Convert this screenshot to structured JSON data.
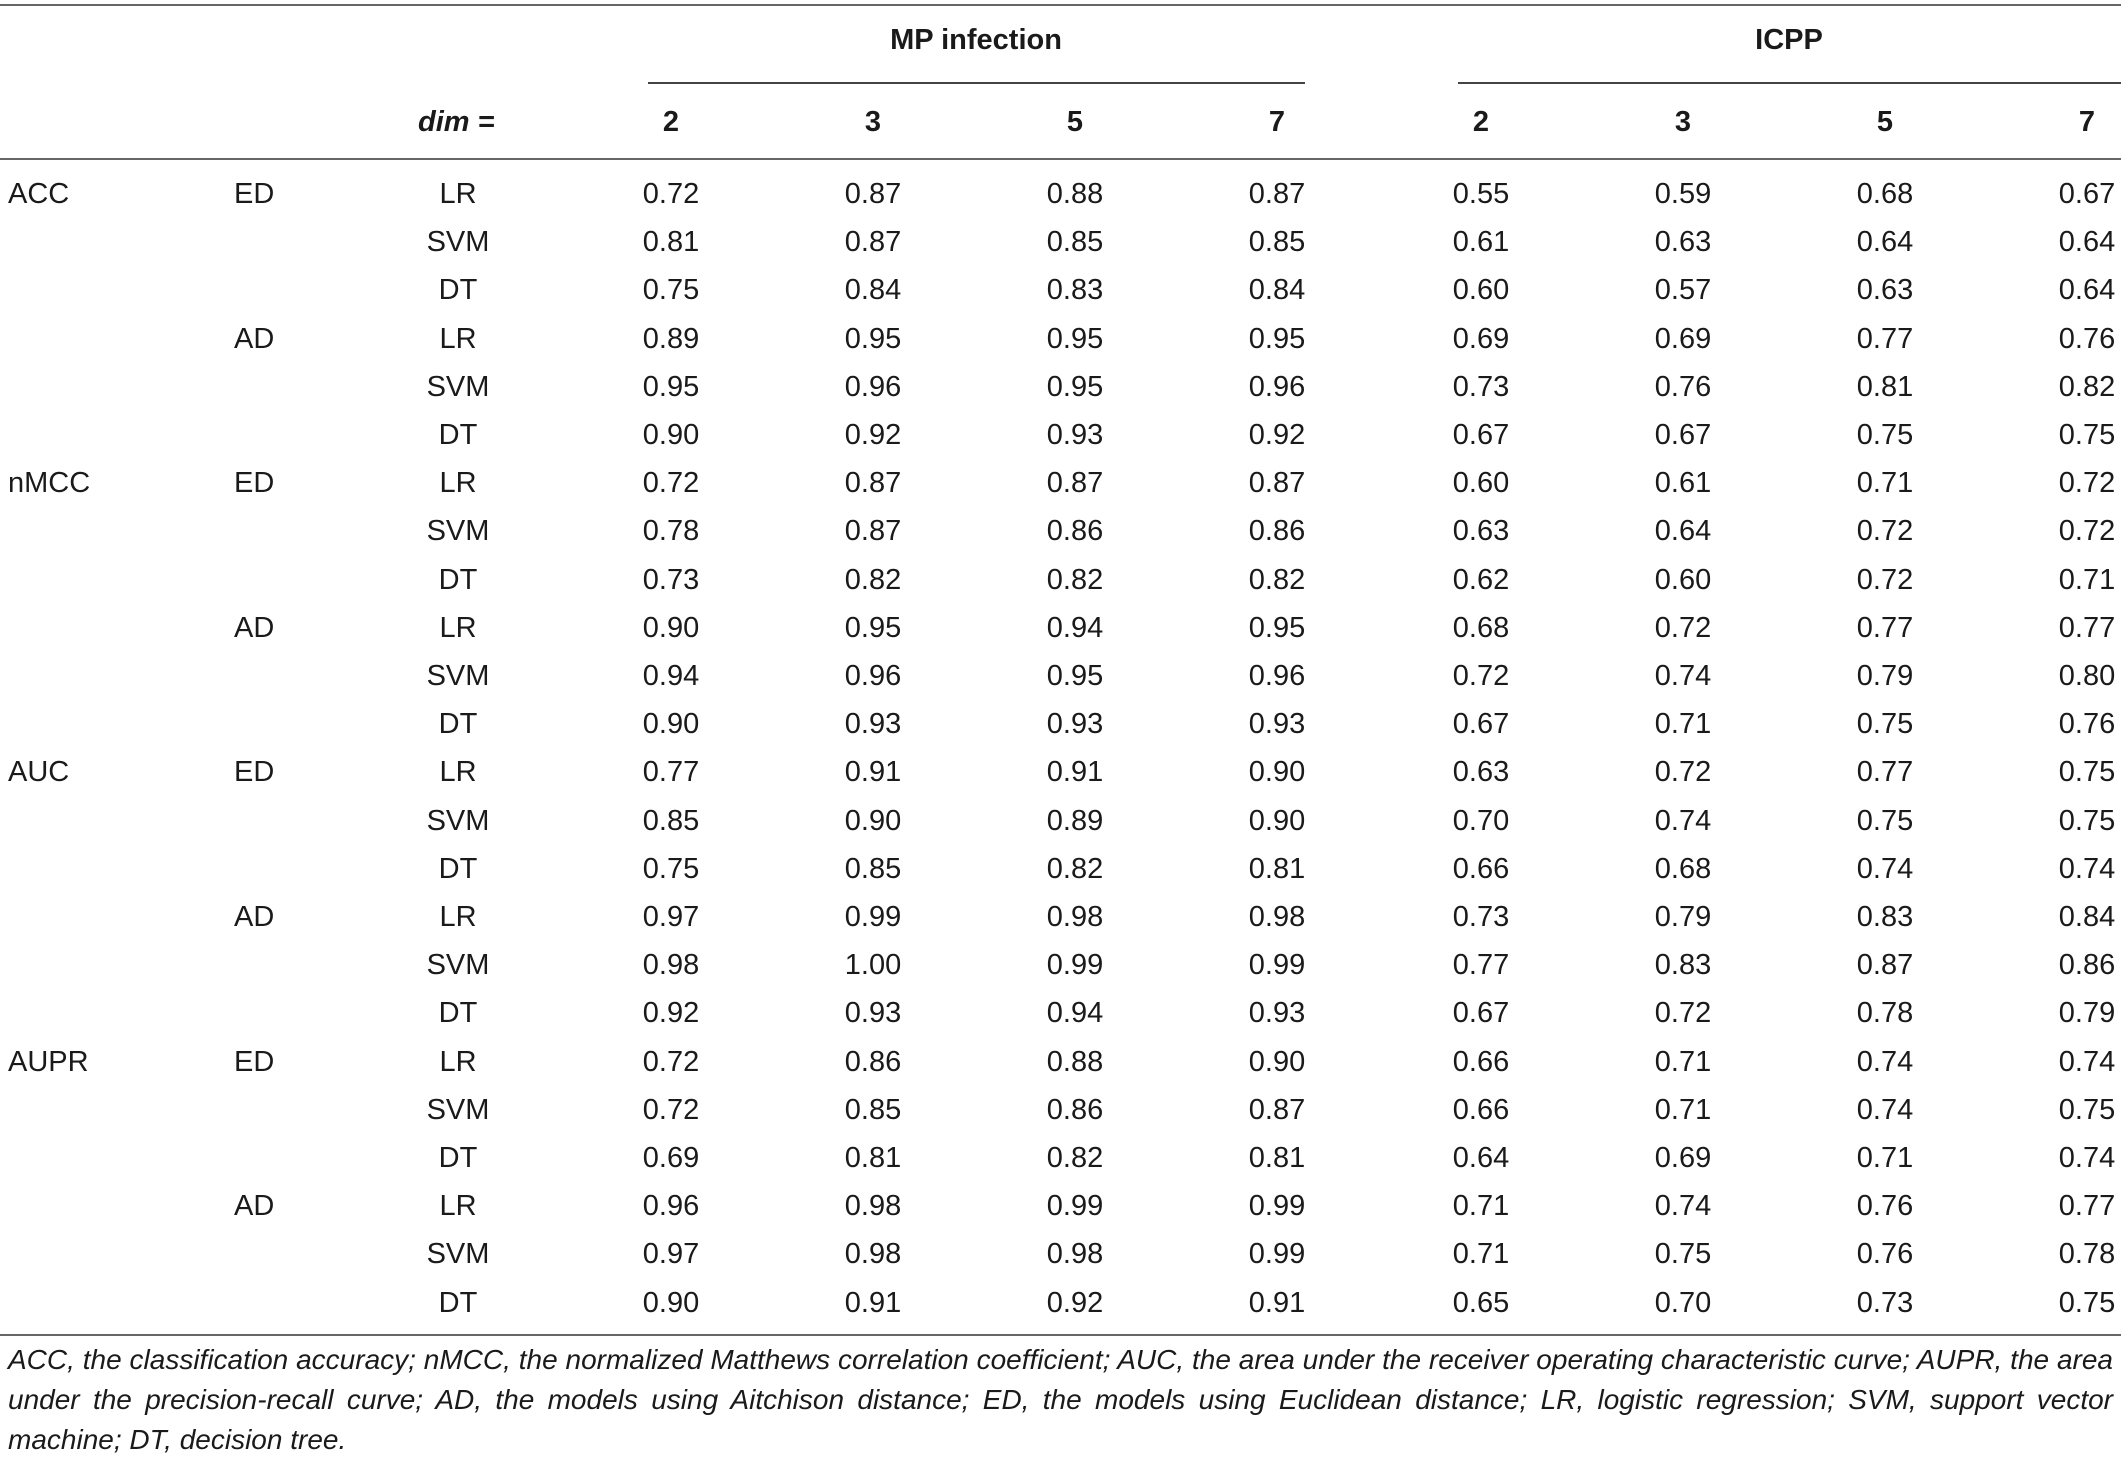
{
  "header": {
    "group1": "MP infection",
    "group2": "ICPP",
    "dim_label": "dim =",
    "dims": [
      "2",
      "3",
      "5",
      "7",
      "2",
      "3",
      "5",
      "7"
    ]
  },
  "rows": [
    {
      "metric": "ACC",
      "distance": "ED",
      "model": "LR",
      "values": [
        "0.72",
        "0.87",
        "0.88",
        "0.87",
        "0.55",
        "0.59",
        "0.68",
        "0.67"
      ]
    },
    {
      "metric": "",
      "distance": "",
      "model": "SVM",
      "values": [
        "0.81",
        "0.87",
        "0.85",
        "0.85",
        "0.61",
        "0.63",
        "0.64",
        "0.64"
      ]
    },
    {
      "metric": "",
      "distance": "",
      "model": "DT",
      "values": [
        "0.75",
        "0.84",
        "0.83",
        "0.84",
        "0.60",
        "0.57",
        "0.63",
        "0.64"
      ]
    },
    {
      "metric": "",
      "distance": "AD",
      "model": "LR",
      "values": [
        "0.89",
        "0.95",
        "0.95",
        "0.95",
        "0.69",
        "0.69",
        "0.77",
        "0.76"
      ]
    },
    {
      "metric": "",
      "distance": "",
      "model": "SVM",
      "values": [
        "0.95",
        "0.96",
        "0.95",
        "0.96",
        "0.73",
        "0.76",
        "0.81",
        "0.82"
      ]
    },
    {
      "metric": "",
      "distance": "",
      "model": "DT",
      "values": [
        "0.90",
        "0.92",
        "0.93",
        "0.92",
        "0.67",
        "0.67",
        "0.75",
        "0.75"
      ]
    },
    {
      "metric": "nMCC",
      "distance": "ED",
      "model": "LR",
      "values": [
        "0.72",
        "0.87",
        "0.87",
        "0.87",
        "0.60",
        "0.61",
        "0.71",
        "0.72"
      ]
    },
    {
      "metric": "",
      "distance": "",
      "model": "SVM",
      "values": [
        "0.78",
        "0.87",
        "0.86",
        "0.86",
        "0.63",
        "0.64",
        "0.72",
        "0.72"
      ]
    },
    {
      "metric": "",
      "distance": "",
      "model": "DT",
      "values": [
        "0.73",
        "0.82",
        "0.82",
        "0.82",
        "0.62",
        "0.60",
        "0.72",
        "0.71"
      ]
    },
    {
      "metric": "",
      "distance": "AD",
      "model": "LR",
      "values": [
        "0.90",
        "0.95",
        "0.94",
        "0.95",
        "0.68",
        "0.72",
        "0.77",
        "0.77"
      ]
    },
    {
      "metric": "",
      "distance": "",
      "model": "SVM",
      "values": [
        "0.94",
        "0.96",
        "0.95",
        "0.96",
        "0.72",
        "0.74",
        "0.79",
        "0.80"
      ]
    },
    {
      "metric": "",
      "distance": "",
      "model": "DT",
      "values": [
        "0.90",
        "0.93",
        "0.93",
        "0.93",
        "0.67",
        "0.71",
        "0.75",
        "0.76"
      ]
    },
    {
      "metric": "AUC",
      "distance": "ED",
      "model": "LR",
      "values": [
        "0.77",
        "0.91",
        "0.91",
        "0.90",
        "0.63",
        "0.72",
        "0.77",
        "0.75"
      ]
    },
    {
      "metric": "",
      "distance": "",
      "model": "SVM",
      "values": [
        "0.85",
        "0.90",
        "0.89",
        "0.90",
        "0.70",
        "0.74",
        "0.75",
        "0.75"
      ]
    },
    {
      "metric": "",
      "distance": "",
      "model": "DT",
      "values": [
        "0.75",
        "0.85",
        "0.82",
        "0.81",
        "0.66",
        "0.68",
        "0.74",
        "0.74"
      ]
    },
    {
      "metric": "",
      "distance": "AD",
      "model": "LR",
      "values": [
        "0.97",
        "0.99",
        "0.98",
        "0.98",
        "0.73",
        "0.79",
        "0.83",
        "0.84"
      ]
    },
    {
      "metric": "",
      "distance": "",
      "model": "SVM",
      "values": [
        "0.98",
        "1.00",
        "0.99",
        "0.99",
        "0.77",
        "0.83",
        "0.87",
        "0.86"
      ]
    },
    {
      "metric": "",
      "distance": "",
      "model": "DT",
      "values": [
        "0.92",
        "0.93",
        "0.94",
        "0.93",
        "0.67",
        "0.72",
        "0.78",
        "0.79"
      ]
    },
    {
      "metric": "AUPR",
      "distance": "ED",
      "model": "LR",
      "values": [
        "0.72",
        "0.86",
        "0.88",
        "0.90",
        "0.66",
        "0.71",
        "0.74",
        "0.74"
      ]
    },
    {
      "metric": "",
      "distance": "",
      "model": "SVM",
      "values": [
        "0.72",
        "0.85",
        "0.86",
        "0.87",
        "0.66",
        "0.71",
        "0.74",
        "0.75"
      ]
    },
    {
      "metric": "",
      "distance": "",
      "model": "DT",
      "values": [
        "0.69",
        "0.81",
        "0.82",
        "0.81",
        "0.64",
        "0.69",
        "0.71",
        "0.74"
      ]
    },
    {
      "metric": "",
      "distance": "AD",
      "model": "LR",
      "values": [
        "0.96",
        "0.98",
        "0.99",
        "0.99",
        "0.71",
        "0.74",
        "0.76",
        "0.77"
      ]
    },
    {
      "metric": "",
      "distance": "",
      "model": "SVM",
      "values": [
        "0.97",
        "0.98",
        "0.98",
        "0.99",
        "0.71",
        "0.75",
        "0.76",
        "0.78"
      ]
    },
    {
      "metric": "",
      "distance": "",
      "model": "DT",
      "values": [
        "0.90",
        "0.91",
        "0.92",
        "0.91",
        "0.65",
        "0.70",
        "0.73",
        "0.75"
      ]
    }
  ],
  "footnote": "ACC, the classification accuracy; nMCC, the normalized Matthews correlation coefficient; AUC, the area under the receiver operating characteristic curve; AUPR, the area under the precision-recall curve; AD, the models using Aitchison distance; ED, the models using Euclidean distance; LR, logistic regression; SVM, support vector machine; DT, decision tree."
}
